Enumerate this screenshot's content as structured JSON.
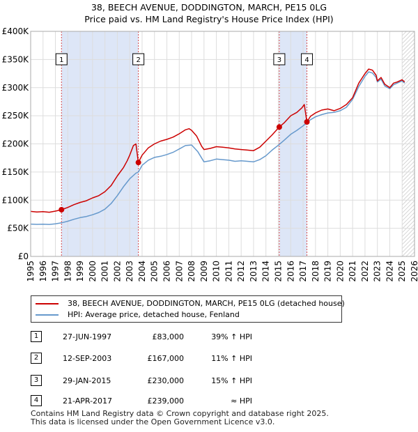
{
  "title_line1": "38, BEECH AVENUE, DODDINGTON, MARCH, PE15 0LG",
  "title_line2": "Price paid vs. HM Land Registry's House Price Index (HPI)",
  "colors": {
    "property": "#cc0000",
    "hpi": "#6699cc",
    "shade": "#dde6f7",
    "grid": "#dddddd"
  },
  "chart_data": {
    "type": "line",
    "x_range": [
      1995,
      2026
    ],
    "ylim": [
      0,
      400000
    ],
    "y_ticks": [
      {
        "value": 0,
        "label": "£0"
      },
      {
        "value": 50000,
        "label": "£50K"
      },
      {
        "value": 100000,
        "label": "£100K"
      },
      {
        "value": 150000,
        "label": "£150K"
      },
      {
        "value": 200000,
        "label": "£200K"
      },
      {
        "value": 250000,
        "label": "£250K"
      },
      {
        "value": 300000,
        "label": "£300K"
      },
      {
        "value": 350000,
        "label": "£350K"
      },
      {
        "value": 400000,
        "label": "£400K"
      }
    ],
    "x_ticks": [
      "1995",
      "1996",
      "1997",
      "1998",
      "1999",
      "2000",
      "2001",
      "2002",
      "2003",
      "2004",
      "2005",
      "2006",
      "2007",
      "2008",
      "2009",
      "2010",
      "2011",
      "2012",
      "2013",
      "2014",
      "2015",
      "2016",
      "2017",
      "2018",
      "2019",
      "2020",
      "2021",
      "2022",
      "2023",
      "2024",
      "2025",
      "2026"
    ],
    "shaded_periods": [
      [
        1997.49,
        2003.7
      ],
      [
        2015.08,
        2017.31
      ]
    ],
    "forecast_start": 2025.0,
    "series": [
      {
        "name": "38, BEECH AVENUE, DODDINGTON, MARCH, PE15 0LG (detached house)",
        "color": "#cc0000",
        "points": [
          [
            1995.0,
            80000
          ],
          [
            1995.5,
            79000
          ],
          [
            1996.0,
            79500
          ],
          [
            1996.5,
            78500
          ],
          [
            1997.0,
            80500
          ],
          [
            1997.49,
            83000
          ],
          [
            1998.0,
            87000
          ],
          [
            1998.5,
            92000
          ],
          [
            1999.0,
            96000
          ],
          [
            1999.5,
            99000
          ],
          [
            2000.0,
            104000
          ],
          [
            2000.5,
            108000
          ],
          [
            2001.0,
            115000
          ],
          [
            2001.5,
            126000
          ],
          [
            2002.0,
            143000
          ],
          [
            2002.5,
            158000
          ],
          [
            2002.8,
            170000
          ],
          [
            2003.0,
            180000
          ],
          [
            2003.3,
            197000
          ],
          [
            2003.5,
            200000
          ],
          [
            2003.7,
            167000
          ],
          [
            2004.0,
            180000
          ],
          [
            2004.5,
            193000
          ],
          [
            2005.0,
            200000
          ],
          [
            2005.5,
            205000
          ],
          [
            2006.0,
            208000
          ],
          [
            2006.5,
            212000
          ],
          [
            2007.0,
            218000
          ],
          [
            2007.5,
            225000
          ],
          [
            2007.8,
            227000
          ],
          [
            2008.0,
            224000
          ],
          [
            2008.4,
            214000
          ],
          [
            2008.8,
            196000
          ],
          [
            2009.0,
            190000
          ],
          [
            2009.5,
            192000
          ],
          [
            2010.0,
            195000
          ],
          [
            2010.5,
            194000
          ],
          [
            2011.0,
            193000
          ],
          [
            2011.5,
            191000
          ],
          [
            2012.0,
            190000
          ],
          [
            2012.5,
            189000
          ],
          [
            2013.0,
            188000
          ],
          [
            2013.5,
            194000
          ],
          [
            2014.0,
            205000
          ],
          [
            2014.5,
            216000
          ],
          [
            2015.08,
            230000
          ],
          [
            2015.5,
            238000
          ],
          [
            2016.0,
            250000
          ],
          [
            2016.5,
            256000
          ],
          [
            2016.9,
            264000
          ],
          [
            2017.1,
            270000
          ],
          [
            2017.31,
            239000
          ],
          [
            2017.6,
            249000
          ],
          [
            2018.0,
            255000
          ],
          [
            2018.5,
            260000
          ],
          [
            2019.0,
            262000
          ],
          [
            2019.5,
            259000
          ],
          [
            2020.0,
            263000
          ],
          [
            2020.5,
            270000
          ],
          [
            2021.0,
            282000
          ],
          [
            2021.5,
            308000
          ],
          [
            2022.0,
            325000
          ],
          [
            2022.3,
            333000
          ],
          [
            2022.6,
            331000
          ],
          [
            2022.9,
            322000
          ],
          [
            2023.0,
            312000
          ],
          [
            2023.3,
            318000
          ],
          [
            2023.6,
            306000
          ],
          [
            2024.0,
            300000
          ],
          [
            2024.3,
            308000
          ],
          [
            2024.6,
            310000
          ],
          [
            2025.0,
            314000
          ],
          [
            2025.2,
            310000
          ]
        ]
      },
      {
        "name": "HPI: Average price, detached house, Fenland",
        "color": "#6699cc",
        "points": [
          [
            1995.0,
            57500
          ],
          [
            1995.5,
            57000
          ],
          [
            1996.0,
            57200
          ],
          [
            1996.5,
            56800
          ],
          [
            1997.0,
            58000
          ],
          [
            1997.49,
            59700
          ],
          [
            1998.0,
            62500
          ],
          [
            1998.5,
            66000
          ],
          [
            1999.0,
            69000
          ],
          [
            1999.5,
            71000
          ],
          [
            2000.0,
            74000
          ],
          [
            2000.5,
            78000
          ],
          [
            2001.0,
            84000
          ],
          [
            2001.5,
            94000
          ],
          [
            2002.0,
            108000
          ],
          [
            2002.5,
            124000
          ],
          [
            2003.0,
            138000
          ],
          [
            2003.5,
            148000
          ],
          [
            2003.7,
            150000
          ],
          [
            2004.0,
            162000
          ],
          [
            2004.5,
            171000
          ],
          [
            2005.0,
            176000
          ],
          [
            2005.5,
            178000
          ],
          [
            2006.0,
            181000
          ],
          [
            2006.5,
            185000
          ],
          [
            2007.0,
            191000
          ],
          [
            2007.5,
            197000
          ],
          [
            2008.0,
            198000
          ],
          [
            2008.5,
            186000
          ],
          [
            2009.0,
            168000
          ],
          [
            2009.5,
            170000
          ],
          [
            2010.0,
            173000
          ],
          [
            2010.5,
            172000
          ],
          [
            2011.0,
            171000
          ],
          [
            2011.5,
            169000
          ],
          [
            2012.0,
            170000
          ],
          [
            2012.5,
            169000
          ],
          [
            2013.0,
            168000
          ],
          [
            2013.5,
            172000
          ],
          [
            2014.0,
            179000
          ],
          [
            2014.5,
            189000
          ],
          [
            2015.08,
            199000
          ],
          [
            2015.5,
            207000
          ],
          [
            2016.0,
            217000
          ],
          [
            2016.5,
            224000
          ],
          [
            2017.0,
            232000
          ],
          [
            2017.31,
            238000
          ],
          [
            2017.6,
            243000
          ],
          [
            2018.0,
            248000
          ],
          [
            2018.5,
            252000
          ],
          [
            2019.0,
            255000
          ],
          [
            2019.5,
            256000
          ],
          [
            2020.0,
            259000
          ],
          [
            2020.5,
            265000
          ],
          [
            2021.0,
            279000
          ],
          [
            2021.5,
            302000
          ],
          [
            2022.0,
            320000
          ],
          [
            2022.3,
            328000
          ],
          [
            2022.6,
            326000
          ],
          [
            2022.9,
            318000
          ],
          [
            2023.0,
            310000
          ],
          [
            2023.3,
            315000
          ],
          [
            2023.6,
            303000
          ],
          [
            2024.0,
            298000
          ],
          [
            2024.3,
            305000
          ],
          [
            2024.6,
            308000
          ],
          [
            2025.0,
            312000
          ],
          [
            2025.2,
            308000
          ]
        ]
      }
    ],
    "sales": [
      {
        "num": "1",
        "x": 1997.49,
        "price": 83000
      },
      {
        "num": "2",
        "x": 2003.7,
        "price": 167000
      },
      {
        "num": "3",
        "x": 2015.08,
        "price": 230000
      },
      {
        "num": "4",
        "x": 2017.31,
        "price": 239000
      }
    ]
  },
  "legend": {
    "property_label": "38, BEECH AVENUE, DODDINGTON, MARCH, PE15 0LG (detached house)",
    "hpi_label": "HPI: Average price, detached house, Fenland"
  },
  "sales_table": [
    {
      "num": "1",
      "date": "27-JUN-1997",
      "price": "£83,000",
      "hpi": "39% ↑ HPI"
    },
    {
      "num": "2",
      "date": "12-SEP-2003",
      "price": "£167,000",
      "hpi": "11% ↑ HPI"
    },
    {
      "num": "3",
      "date": "29-JAN-2015",
      "price": "£230,000",
      "hpi": "15% ↑ HPI"
    },
    {
      "num": "4",
      "date": "21-APR-2017",
      "price": "£239,000",
      "hpi": "≈ HPI"
    }
  ],
  "footer_line1": "Contains HM Land Registry data © Crown copyright and database right 2025.",
  "footer_line2": "This data is licensed under the Open Government Licence v3.0."
}
